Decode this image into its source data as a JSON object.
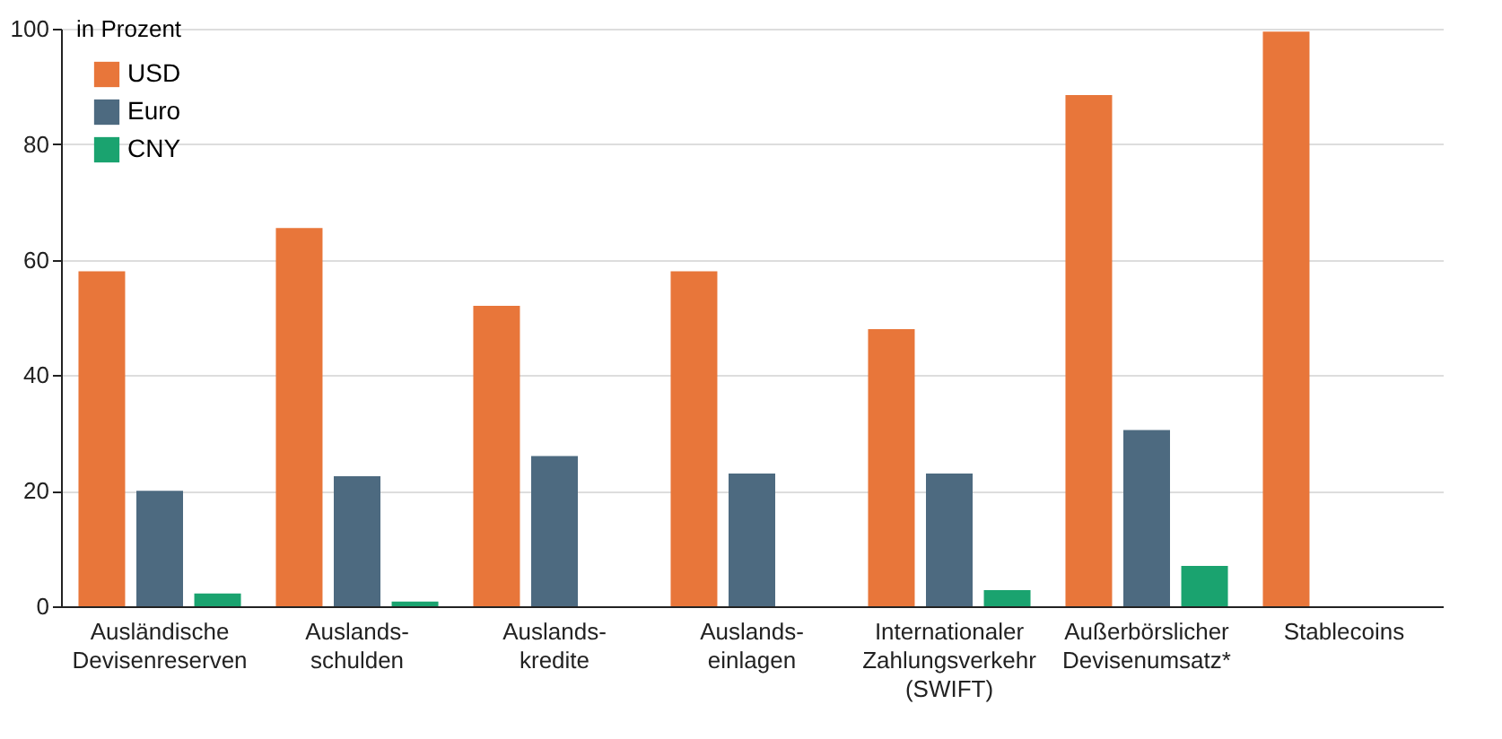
{
  "chart_data": {
    "type": "bar",
    "ylabel": "in Prozent",
    "categories": [
      "Ausländische\nDevisenreserven",
      "Auslands-\nschulden",
      "Auslands-\nkredite",
      "Auslands-\neinlagen",
      "Internationaler\nZahlungsverkehr\n(SWIFT)",
      "Außerbörslicher\nDevisenumsatz*",
      "Stablecoins"
    ],
    "series": [
      {
        "name": "USD",
        "color": "#e8763a",
        "values": [
          58,
          65.5,
          52,
          58,
          48,
          88.5,
          99.5
        ]
      },
      {
        "name": "Euro",
        "color": "#4d6a80",
        "values": [
          20,
          22.5,
          26,
          23,
          23,
          30.5,
          null
        ]
      },
      {
        "name": "CNY",
        "color": "#1aa36f",
        "values": [
          2.2,
          0.8,
          null,
          null,
          2.8,
          7,
          null
        ]
      }
    ],
    "ylim": [
      0,
      100
    ],
    "yticks": [
      0,
      20,
      40,
      60,
      80,
      100
    ],
    "grid": "y",
    "legend": "top left"
  }
}
